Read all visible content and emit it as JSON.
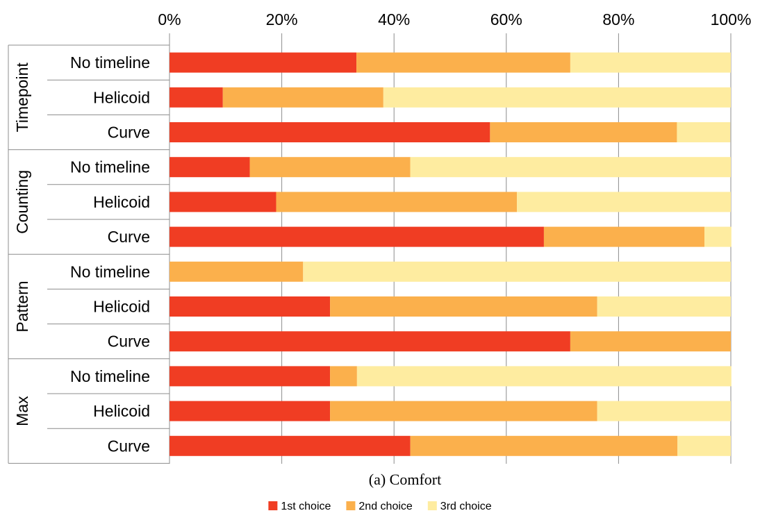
{
  "caption": "(a) Comfort",
  "chart_data": {
    "type": "bar",
    "orientation": "horizontal",
    "stacked": "percent",
    "x_ticks": [
      "0%",
      "20%",
      "40%",
      "60%",
      "80%",
      "100%"
    ],
    "xlim": [
      0,
      100
    ],
    "grid": true,
    "legend_position": "bottom",
    "groups": [
      {
        "label": "Timepoint",
        "categories": [
          "No timeline",
          "Helicoid",
          "Curve"
        ]
      },
      {
        "label": "Counting",
        "categories": [
          "No timeline",
          "Helicoid",
          "Curve"
        ]
      },
      {
        "label": "Pattern",
        "categories": [
          "No timeline",
          "Helicoid",
          "Curve"
        ]
      },
      {
        "label": "Max",
        "categories": [
          "No timeline",
          "Helicoid",
          "Curve"
        ]
      }
    ],
    "series": [
      {
        "name": "1st choice",
        "color": "#f03d23",
        "values": [
          33.3,
          9.5,
          57.1,
          14.3,
          19.0,
          66.7,
          0.0,
          28.6,
          71.4,
          28.6,
          28.6,
          42.9
        ]
      },
      {
        "name": "2nd choice",
        "color": "#fbb04c",
        "values": [
          38.1,
          28.6,
          33.3,
          28.6,
          42.9,
          28.6,
          23.8,
          47.6,
          28.6,
          4.8,
          47.6,
          47.6
        ]
      },
      {
        "name": "3rd choice",
        "color": "#feeca0",
        "values": [
          28.6,
          61.9,
          9.5,
          57.1,
          38.1,
          4.8,
          76.2,
          23.8,
          0.0,
          66.7,
          23.8,
          9.5
        ]
      }
    ]
  }
}
